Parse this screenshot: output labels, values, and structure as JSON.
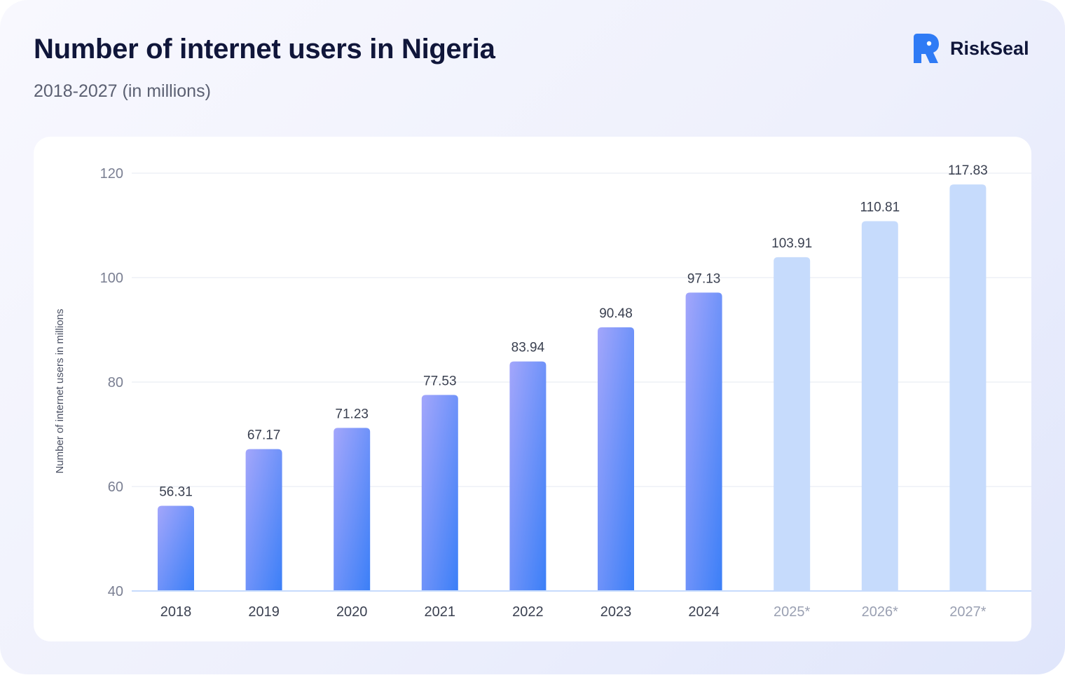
{
  "header": {
    "title": "Number of internet users in Nigeria",
    "subtitle": "2018-2027 (in millions)",
    "brand": "RiskSeal",
    "brand_logo_icon": "riskseal-seal-logo-icon"
  },
  "colors": {
    "actual_gradient_start": "#a3a6fb",
    "actual_gradient_end": "#3b7ff7",
    "forecast_bar": "#c6dbfc",
    "grid": "#eef0f5",
    "axis": "#c6dbfc",
    "tick_text": "#7a7f92",
    "value_text": "#3a4050",
    "logo": "#2f7bf5"
  },
  "chart_data": {
    "type": "bar",
    "title": "Number of internet users in Nigeria",
    "subtitle": "2018-2027 (in millions)",
    "xlabel": "",
    "ylabel": "Number of internet users in millions",
    "categories": [
      "2018",
      "2019",
      "2020",
      "2021",
      "2022",
      "2023",
      "2024",
      "2025*",
      "2026*",
      "2027*"
    ],
    "values": [
      56.31,
      67.17,
      71.23,
      77.53,
      83.94,
      90.48,
      97.13,
      103.91,
      110.81,
      117.83
    ],
    "forecast": [
      false,
      false,
      false,
      false,
      false,
      false,
      false,
      true,
      true,
      true
    ],
    "ylim": [
      40,
      120
    ],
    "yticks": [
      40,
      60,
      80,
      100,
      120
    ],
    "grid": true,
    "legend": "none"
  }
}
